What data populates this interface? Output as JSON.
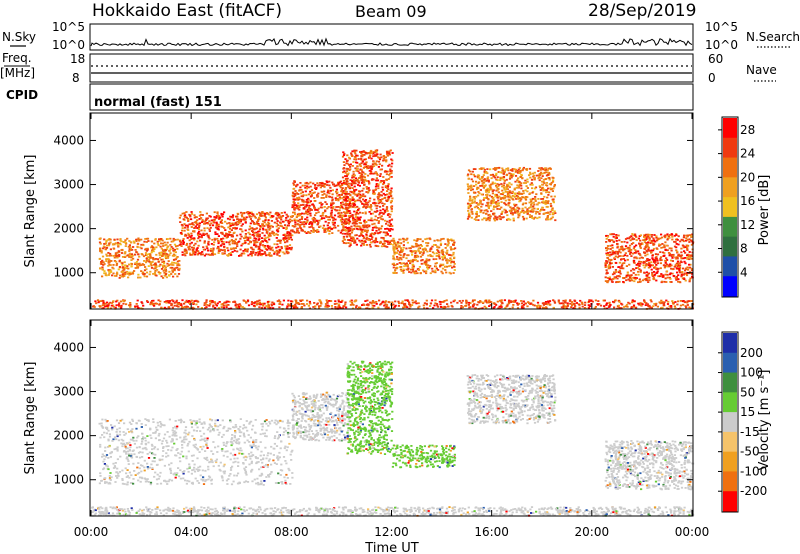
{
  "header": {
    "station": "Hokkaido East (fitACF)",
    "beam": "Beam 09",
    "date": "28/Sep/2019"
  },
  "noise_panel": {
    "left_label": "N.Sky",
    "right_label": "N.Search",
    "left_ticks": [
      "10^5",
      "10^0"
    ],
    "right_ticks": [
      "10^5",
      "10^0"
    ]
  },
  "freq_panel": {
    "left_label_top": "Freq.",
    "left_label_unit": "[MHz]",
    "right_label": "Nave",
    "left_ticks": [
      "18",
      "8"
    ],
    "right_ticks": [
      "60",
      "0"
    ]
  },
  "cpid_panel": {
    "label": "CPID",
    "text": "normal (fast) 151"
  },
  "colors": {
    "power": [
      "#0000ff",
      "#1f4fa8",
      "#2f6f3f",
      "#3f8f3f",
      "#f0c020",
      "#f0a020",
      "#f07010",
      "#f03a10",
      "#ff0000"
    ],
    "velocity": [
      "#1e2ea8",
      "#2a5fb0",
      "#3f8f3f",
      "#66cc33",
      "#cccccc",
      "#f5c36a",
      "#f0a020",
      "#f07010",
      "#ff0000"
    ]
  },
  "chart_data": [
    {
      "type": "heatmap",
      "name": "power",
      "ylabel": "Slant Range [km]",
      "xlabel": "",
      "y_ticks": [
        1000,
        2000,
        3000,
        4000
      ],
      "ylim": [
        200,
        4600
      ],
      "x_ticks": [
        "00:00",
        "04:00",
        "08:00",
        "12:00",
        "16:00",
        "20:00",
        "00:00"
      ],
      "colorbar": {
        "label": "Power [dB]",
        "ticks": [
          4,
          8,
          12,
          16,
          20,
          24,
          28
        ],
        "range": [
          0,
          30
        ]
      },
      "regions": [
        {
          "x": [
            0.3,
            3.5
          ],
          "y": [
            900,
            1800
          ],
          "value": 24
        },
        {
          "x": [
            3.5,
            8.0
          ],
          "y": [
            1400,
            2400
          ],
          "value": 26
        },
        {
          "x": [
            8.0,
            10.3
          ],
          "y": [
            1900,
            3100
          ],
          "value": 26
        },
        {
          "x": [
            10.0,
            12.0
          ],
          "y": [
            1600,
            3800
          ],
          "value": 28
        },
        {
          "x": [
            12.0,
            14.5
          ],
          "y": [
            1000,
            1800
          ],
          "value": 22
        },
        {
          "x": [
            15.0,
            18.5
          ],
          "y": [
            2200,
            3400
          ],
          "value": 22
        },
        {
          "x": [
            20.5,
            24.0
          ],
          "y": [
            800,
            1900
          ],
          "value": 26
        },
        {
          "x": [
            0.0,
            24.0
          ],
          "y": [
            200,
            400
          ],
          "value": 26
        }
      ]
    },
    {
      "type": "heatmap",
      "name": "velocity",
      "ylabel": "Slant Range [km]",
      "xlabel": "Time UT",
      "y_ticks": [
        1000,
        2000,
        3000,
        4000
      ],
      "ylim": [
        200,
        4600
      ],
      "x_ticks": [
        "00:00",
        "04:00",
        "08:00",
        "12:00",
        "16:00",
        "20:00",
        "00:00"
      ],
      "colorbar": {
        "label": "Velocity [m s⁻¹]",
        "ticks": [
          200,
          100,
          50,
          15,
          -15,
          -50,
          -100,
          -200
        ]
      },
      "regions": [
        {
          "x": [
            0.3,
            8.0
          ],
          "y": [
            900,
            2400
          ],
          "value": 0
        },
        {
          "x": [
            8.0,
            10.3
          ],
          "y": [
            1900,
            3000
          ],
          "value": 0
        },
        {
          "x": [
            10.2,
            12.0
          ],
          "y": [
            1600,
            3700
          ],
          "value": 40
        },
        {
          "x": [
            12.0,
            14.5
          ],
          "y": [
            1300,
            1800
          ],
          "value": 40
        },
        {
          "x": [
            15.0,
            18.5
          ],
          "y": [
            2300,
            3400
          ],
          "value": 0
        },
        {
          "x": [
            20.5,
            24.0
          ],
          "y": [
            800,
            1900
          ],
          "value": 0
        },
        {
          "x": [
            0.0,
            24.0
          ],
          "y": [
            200,
            400
          ],
          "value": 30
        }
      ]
    }
  ]
}
